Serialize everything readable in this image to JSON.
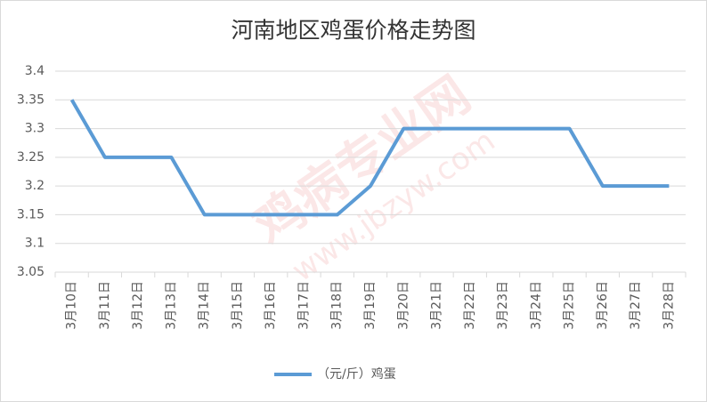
{
  "chart_data": {
    "type": "line",
    "title": "河南地区鸡蛋价格走势图",
    "watermark": [
      "鸡病专业网",
      "www.jbzyw.com"
    ],
    "categories": [
      "3月10日",
      "3月11日",
      "3月12日",
      "3月13日",
      "3月14日",
      "3月15日",
      "3月16日",
      "3月17日",
      "3月18日",
      "3月19日",
      "3月20日",
      "3月21日",
      "3月22日",
      "3月23日",
      "3月24日",
      "3月25日",
      "3月26日",
      "3月27日",
      "3月28日"
    ],
    "series": [
      {
        "name": "（元/斤）鸡蛋",
        "color": "#5b9bd5",
        "values": [
          3.35,
          3.25,
          3.25,
          3.25,
          3.15,
          3.15,
          3.15,
          3.15,
          3.15,
          3.2,
          3.3,
          3.3,
          3.3,
          3.3,
          3.3,
          3.3,
          3.2,
          3.2,
          3.2
        ]
      }
    ],
    "ylim": [
      3.05,
      3.4
    ],
    "yticks": [
      3.05,
      3.1,
      3.15,
      3.2,
      3.25,
      3.3,
      3.35,
      3.4
    ],
    "grid": true,
    "legend": "bottom"
  }
}
